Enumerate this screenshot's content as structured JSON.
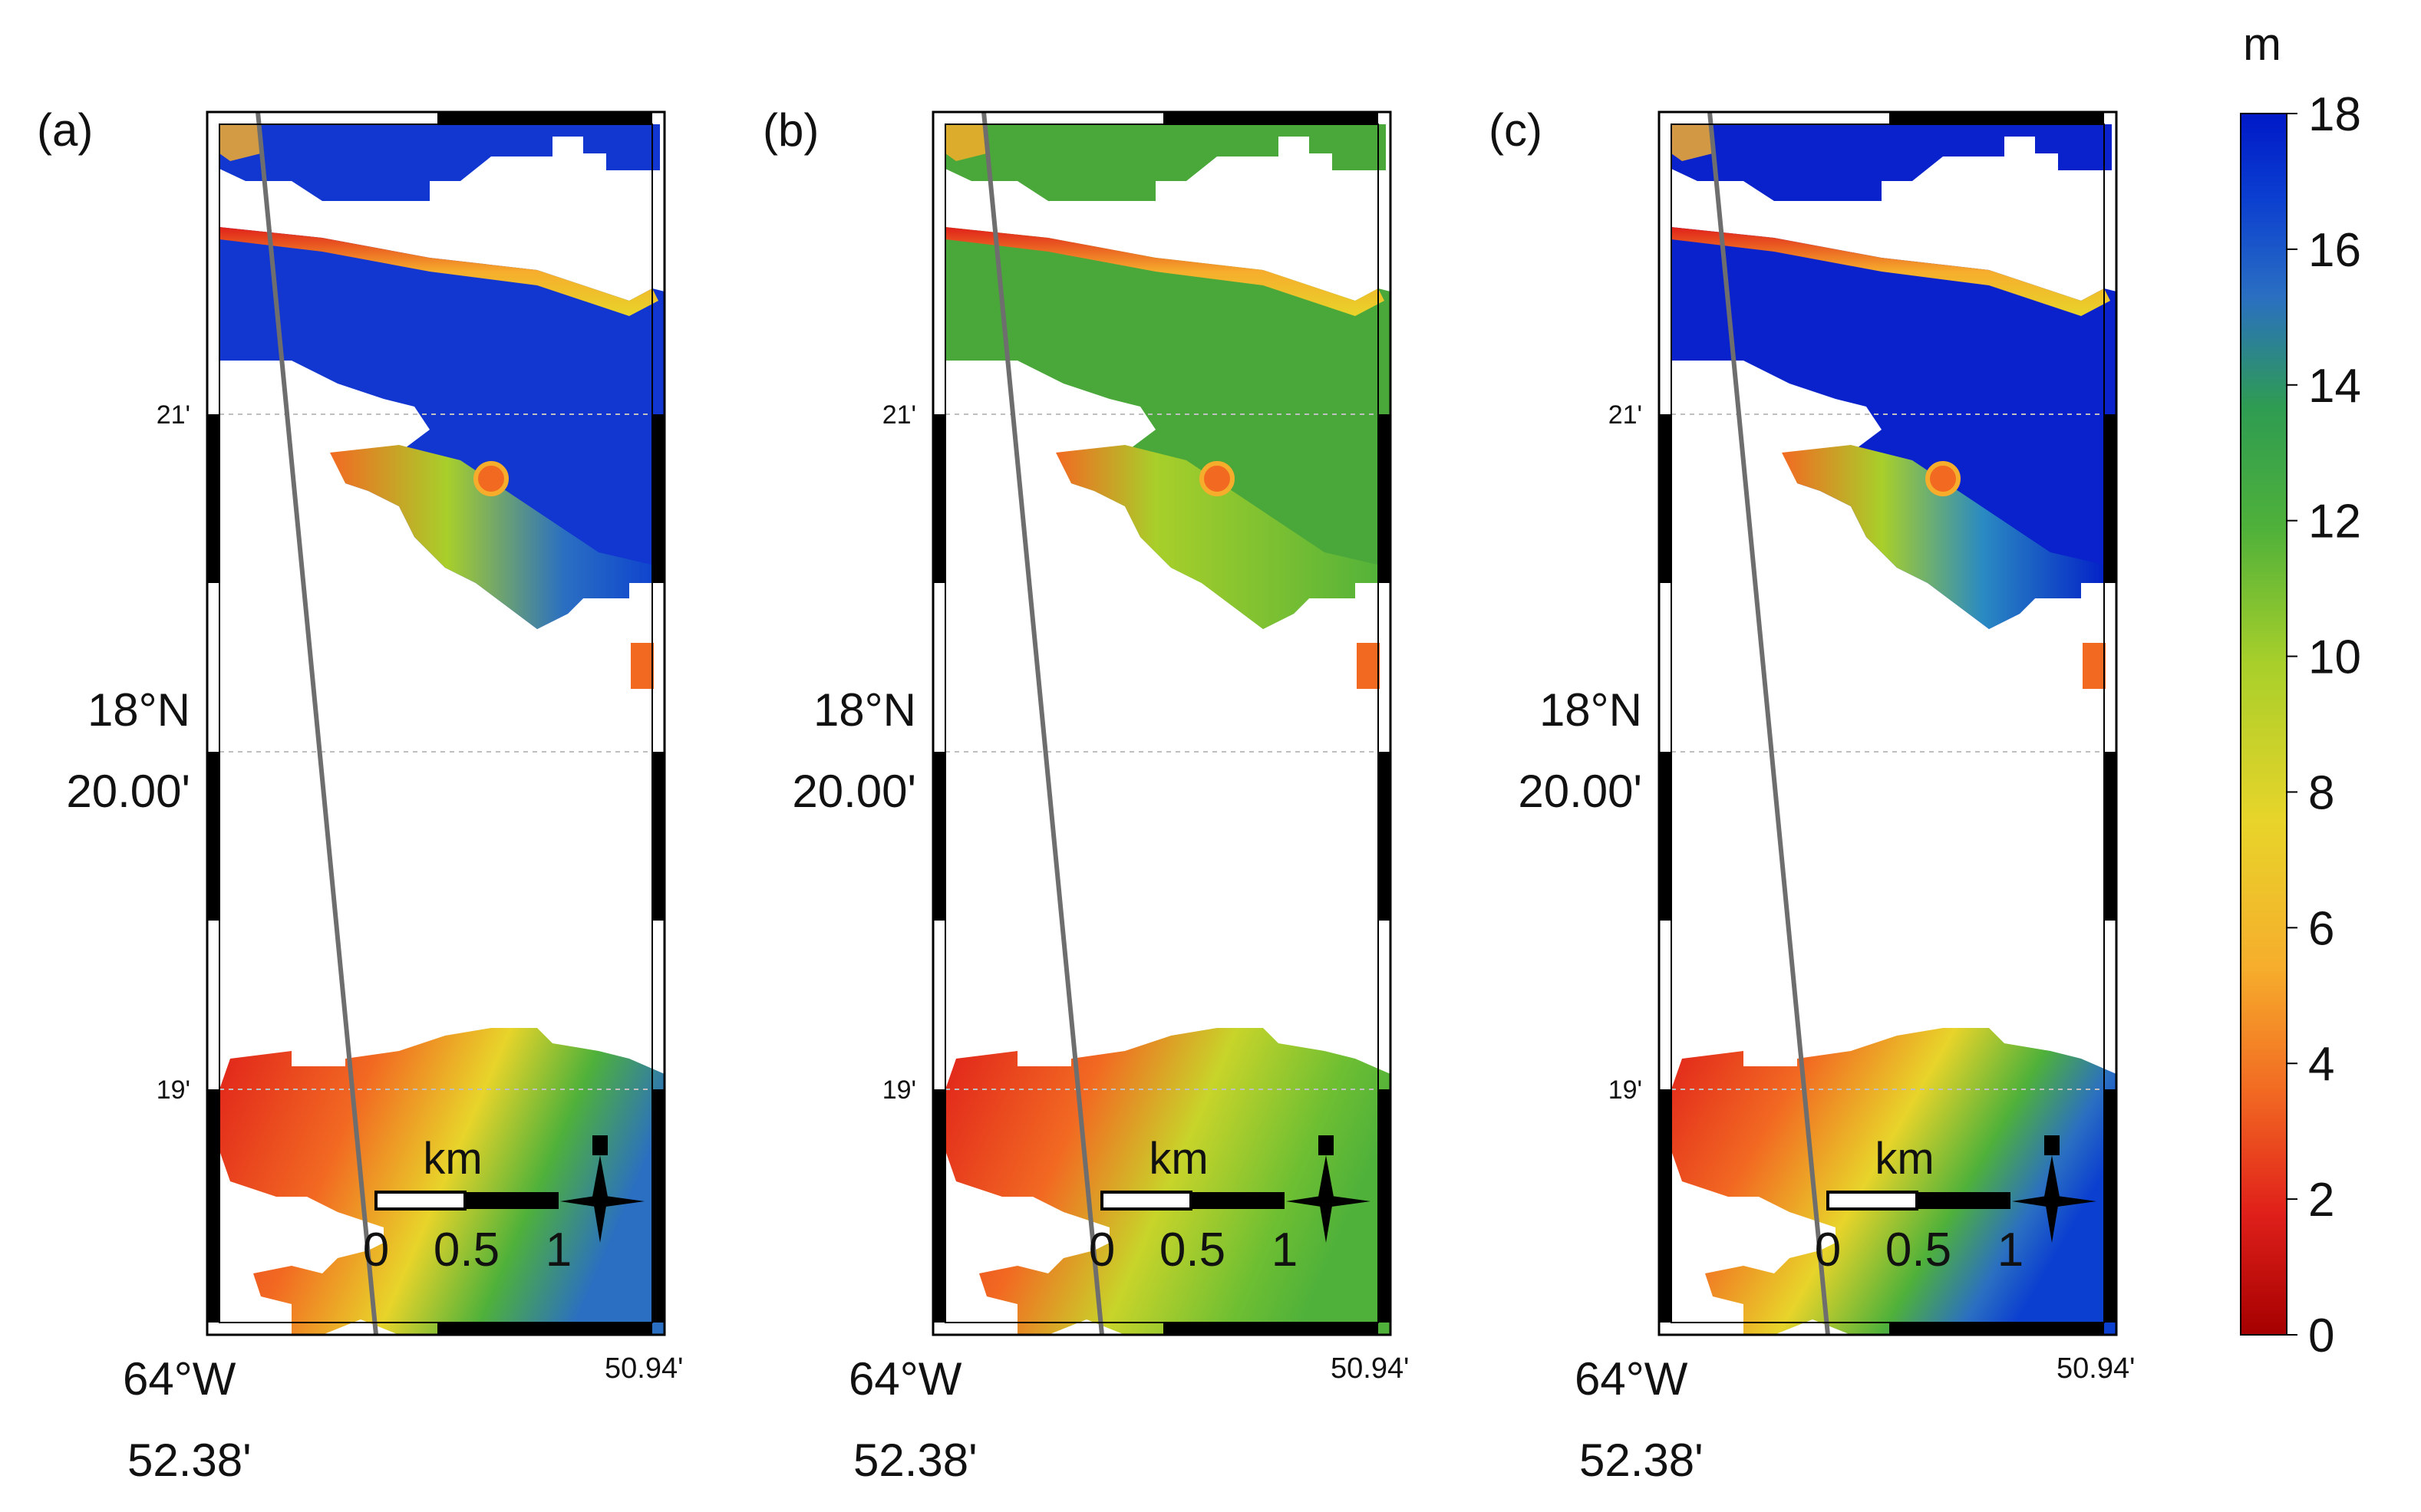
{
  "panels": [
    {
      "label": "(a)",
      "scenario": "blue"
    },
    {
      "label": "(b)",
      "scenario": "green"
    },
    {
      "label": "(c)",
      "scenario": "deepblue"
    }
  ],
  "axes": {
    "lat_top_tick": "21'",
    "lat_mid_deg": "18°N",
    "lat_mid_min": "20.00'",
    "lat_bottom_tick": "19'",
    "lon_left_deg": "64°W",
    "lon_left_min": "52.38'",
    "lon_right": "50.94'"
  },
  "scale_bar": {
    "unit": "km",
    "labels": [
      "0",
      "0.5",
      "1"
    ]
  },
  "colorbar": {
    "unit": "m",
    "ticks": [
      "18",
      "16",
      "14",
      "12",
      "10",
      "8",
      "6",
      "4",
      "2",
      "0"
    ],
    "min": 0,
    "max": 18
  },
  "colors": {
    "frame": "#000000",
    "track_line": "#6e6e6e",
    "colormap_stops": [
      "#a50000",
      "#e0201a",
      "#f26a22",
      "#f6ad2c",
      "#e8d42a",
      "#a8cf2a",
      "#4fb13a",
      "#2e9c52",
      "#2a6fc2",
      "#0b3fd0",
      "#0018c8"
    ]
  }
}
